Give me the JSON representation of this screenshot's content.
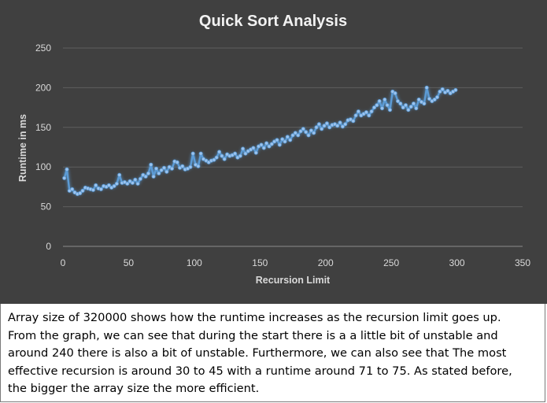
{
  "chart_data": {
    "type": "line",
    "title": "Quick Sort Analysis",
    "xlabel": "Recursion Limit",
    "ylabel": "Runtime in ms",
    "xlim": [
      0,
      350
    ],
    "ylim": [
      0,
      250
    ],
    "x_ticks": [
      0,
      50,
      100,
      150,
      200,
      250,
      300,
      350
    ],
    "y_ticks": [
      0,
      50,
      100,
      150,
      200,
      250
    ],
    "grid": "horizontal",
    "legend": "none",
    "series_color": "#5b9bd5",
    "series": [
      {
        "x": [
          1,
          3,
          5,
          7,
          9,
          11,
          13,
          15,
          17,
          19,
          21,
          23,
          25,
          27,
          29,
          31,
          33,
          35,
          37,
          39,
          41,
          43,
          45,
          47,
          49,
          51,
          53,
          55,
          57,
          59,
          61,
          63,
          65,
          67,
          69,
          71,
          73,
          75,
          77,
          79,
          81,
          83,
          85,
          87,
          89,
          91,
          93,
          95,
          97,
          99,
          101,
          103,
          105,
          107,
          109,
          111,
          113,
          115,
          117,
          119,
          121,
          123,
          125,
          127,
          129,
          131,
          133,
          135,
          137,
          139,
          141,
          143,
          145,
          147,
          149,
          151,
          153,
          155,
          157,
          159,
          161,
          163,
          165,
          167,
          169,
          171,
          173,
          175,
          177,
          179,
          181,
          183,
          185,
          187,
          189,
          191,
          193,
          195,
          197,
          199,
          201,
          203,
          205,
          207,
          209,
          211,
          213,
          215,
          217,
          219,
          221,
          223,
          225,
          227,
          229,
          231,
          233,
          235,
          237,
          239,
          241,
          243,
          245,
          247,
          249,
          251,
          253,
          255,
          257,
          259,
          261,
          263,
          265,
          267,
          269,
          271,
          273,
          275,
          277,
          279,
          281,
          283,
          285,
          287,
          289,
          291,
          293,
          295,
          297,
          299
        ],
        "values": [
          86,
          97,
          70,
          72,
          68,
          66,
          67,
          70,
          74,
          73,
          72,
          71,
          77,
          73,
          72,
          76,
          75,
          77,
          74,
          76,
          79,
          90,
          80,
          81,
          79,
          82,
          80,
          84,
          79,
          85,
          90,
          88,
          92,
          103,
          88,
          98,
          92,
          96,
          99,
          94,
          100,
          98,
          107,
          106,
          99,
          101,
          97,
          98,
          100,
          117,
          103,
          101,
          117,
          110,
          108,
          106,
          108,
          109,
          112,
          119,
          114,
          110,
          116,
          114,
          115,
          117,
          112,
          114,
          123,
          117,
          120,
          122,
          124,
          118,
          126,
          128,
          124,
          130,
          126,
          129,
          132,
          134,
          128,
          135,
          132,
          138,
          134,
          140,
          143,
          140,
          145,
          148,
          144,
          140,
          146,
          143,
          150,
          154,
          148,
          152,
          155,
          150,
          153,
          154,
          152,
          156,
          151,
          154,
          159,
          160,
          158,
          165,
          170,
          165,
          167,
          169,
          165,
          170,
          175,
          178,
          183,
          174,
          185,
          178,
          172,
          195,
          193,
          183,
          180,
          175,
          178,
          172,
          176,
          180,
          174,
          185,
          182,
          180,
          200,
          186,
          183,
          185,
          188,
          195,
          198,
          194,
          196,
          193,
          195,
          197
        ]
      }
    ]
  },
  "caption": {
    "line1": "Array size of 320000 shows how the runtime increases as the recursion limit goes up.",
    "line2": "From the graph, we can see that during the start there is a a little bit of unstable and",
    "line3": "around 240 there is also a bit of unstable. Furthermore, we can also see that The most",
    "line4": "effective recursion is around 30 to 45 with a runtime around 71 to 75. As stated before,",
    "line5": "the bigger the array size the more efficient."
  }
}
